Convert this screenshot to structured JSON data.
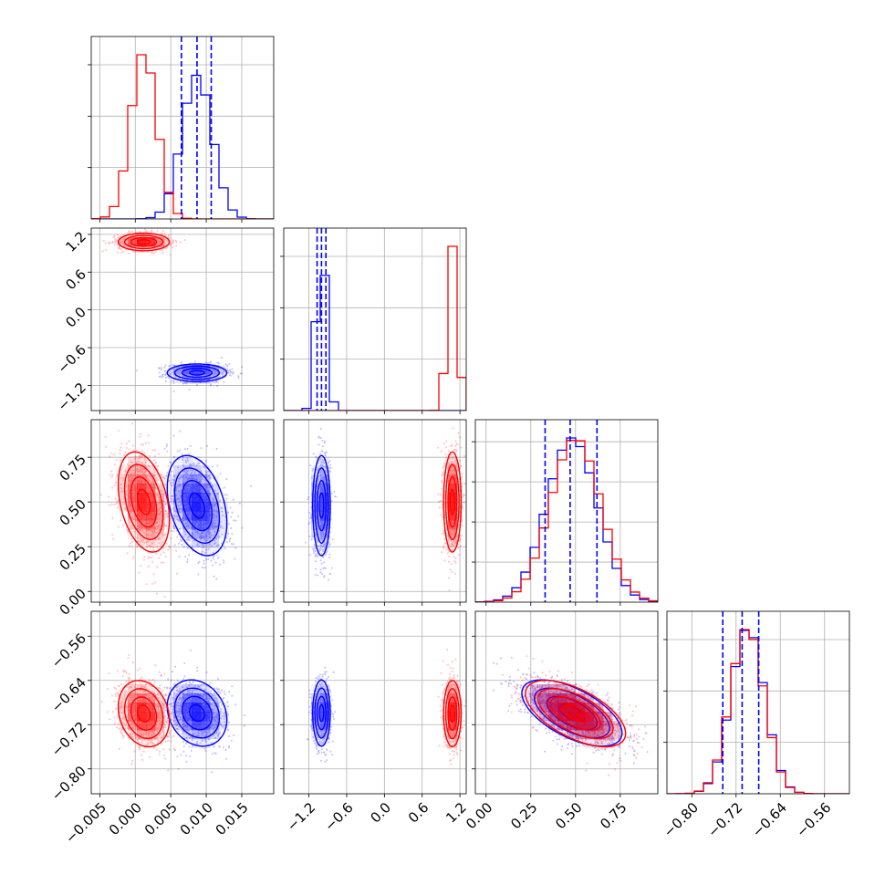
{
  "chart_data": {
    "type": "corner",
    "series": [
      {
        "name": "",
        "color": "#0000ff",
        "means": [
          0.0087,
          -1.0,
          0.48,
          -0.699
        ],
        "sigmas": [
          0.0021,
          0.07,
          0.14,
          0.03
        ],
        "corr": [
          [
            1,
            0,
            -0.35,
            -0.2
          ],
          [
            0,
            1,
            0,
            0
          ],
          [
            -0.35,
            0,
            1,
            -0.6
          ],
          [
            -0.2,
            0,
            -0.6,
            1
          ]
        ]
      },
      {
        "name": "",
        "color": "#ff0000",
        "means": [
          0.0012,
          1.08,
          0.5,
          -0.7
        ],
        "sigmas": [
          0.0018,
          0.07,
          0.14,
          0.03
        ],
        "corr": [
          [
            1,
            0,
            -0.35,
            -0.2
          ],
          [
            0,
            1,
            0,
            0
          ],
          [
            -0.35,
            0,
            1,
            -0.6
          ],
          [
            -0.2,
            0,
            -0.6,
            1
          ]
        ]
      }
    ],
    "quantile_lines": {
      "color": "#0000ff",
      "p0": [
        0.0065,
        0.0087,
        0.0107
      ],
      "p1": [
        -1.07,
        -1.0,
        -0.93
      ],
      "p2": [
        0.33,
        0.47,
        0.62
      ],
      "p3": [
        -0.744,
        -0.709,
        -0.679
      ]
    },
    "ranges": [
      [
        -0.0062,
        0.0195
      ],
      [
        -1.6,
        1.3
      ],
      [
        -0.06,
        0.96
      ],
      [
        -0.845,
        -0.515
      ]
    ],
    "ticks": [
      [
        -0.005,
        0.0,
        0.005,
        0.01,
        0.015
      ],
      [
        -1.2,
        -0.6,
        0.0,
        0.6,
        1.2
      ],
      [
        0.0,
        0.25,
        0.5,
        0.75
      ],
      [
        -0.8,
        -0.72,
        -0.64,
        -0.56
      ]
    ],
    "tick_labels": [
      [
        "−0.005",
        "0.000",
        "0.005",
        "0.010",
        "0.015"
      ],
      [
        "−1.2",
        "−0.6",
        "0.0",
        "0.6",
        "1.2"
      ],
      [
        "0.00",
        "0.25",
        "0.50",
        "0.75"
      ],
      [
        "−0.80",
        "−0.72",
        "−0.64",
        "−0.56"
      ]
    ],
    "hist_y_ticks": [
      3,
      3,
      4,
      3
    ],
    "grid": true,
    "title": "",
    "xlabel": "",
    "ylabel": ""
  }
}
